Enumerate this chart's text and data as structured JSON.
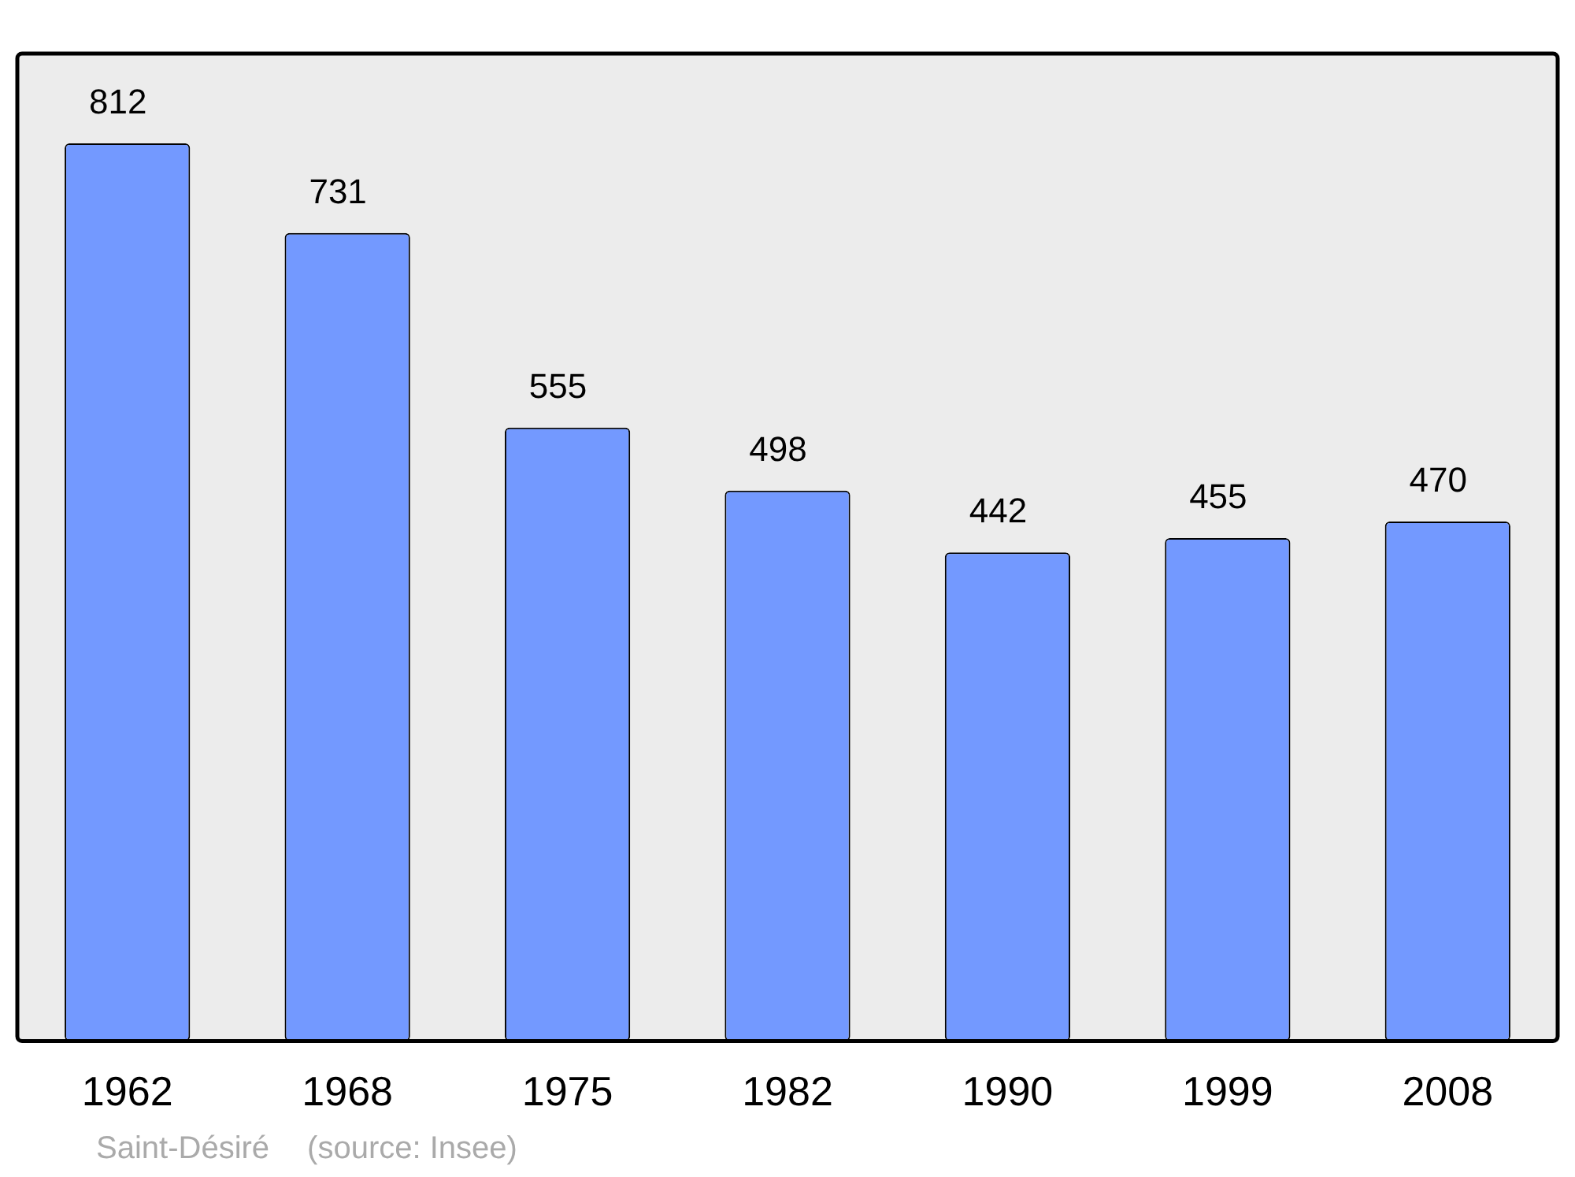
{
  "chart_data": {
    "type": "bar",
    "categories": [
      "1962",
      "1968",
      "1975",
      "1982",
      "1990",
      "1999",
      "2008"
    ],
    "values": [
      812,
      731,
      555,
      498,
      442,
      455,
      470
    ],
    "color": "#7399ff",
    "data_labels": true,
    "grid": false,
    "legend": false,
    "annotations": [
      "Saint-Désiré",
      "(source: Insee)"
    ]
  }
}
